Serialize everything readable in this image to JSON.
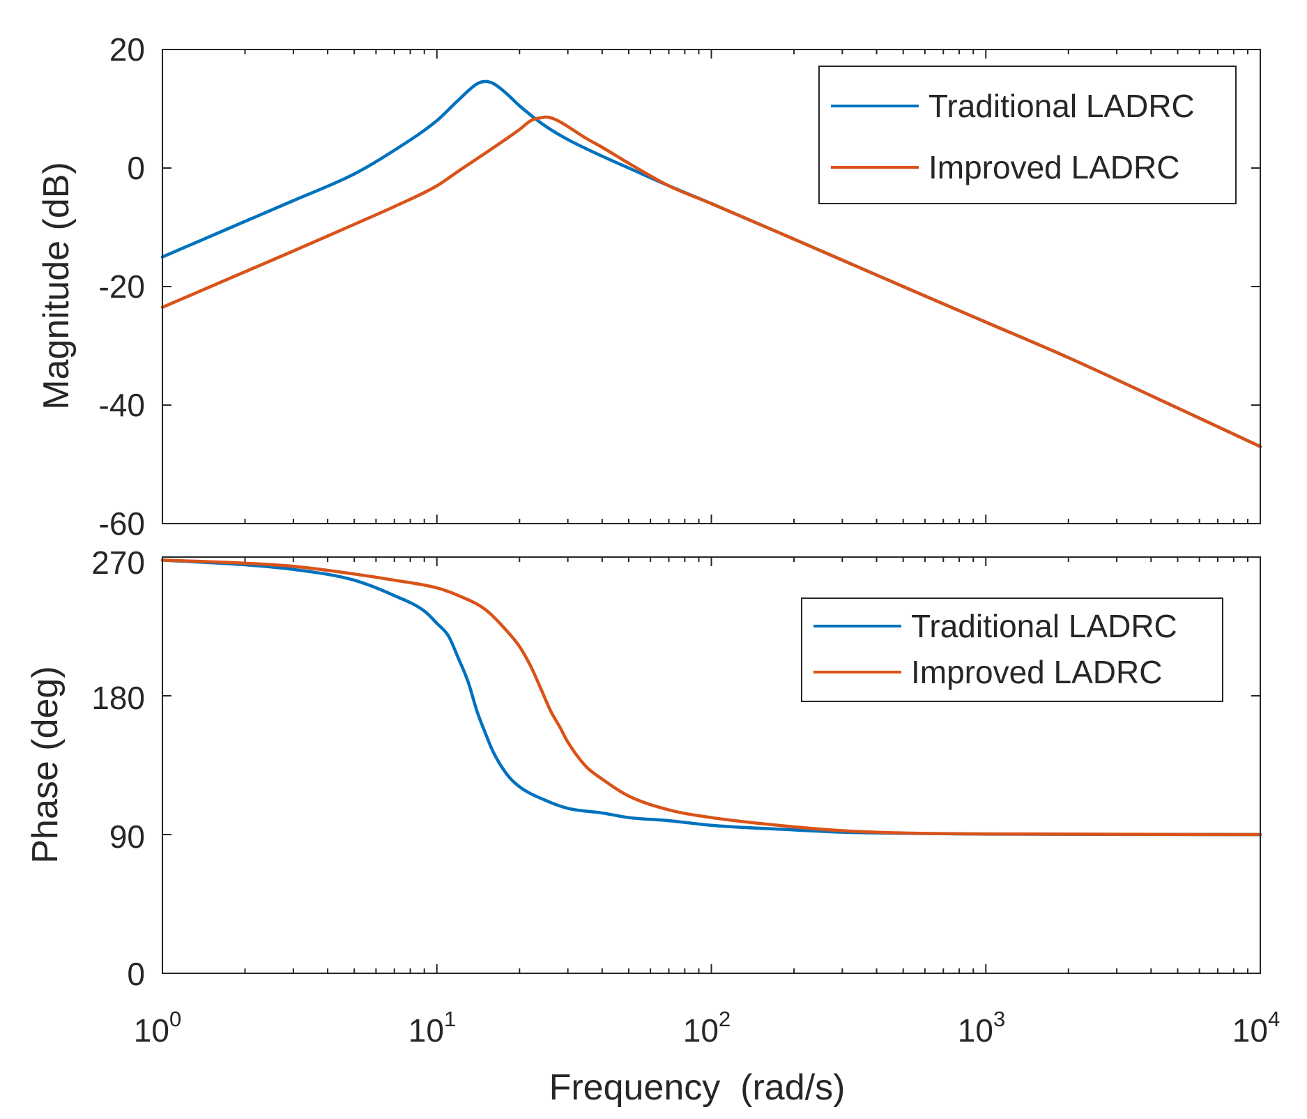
{
  "chart_data": [
    {
      "type": "line",
      "panel": "magnitude",
      "xscale": "log",
      "xlim": [
        1,
        10000
      ],
      "ylim": [
        -60,
        20
      ],
      "yticks": [
        "20",
        "0",
        "-20",
        "-40",
        "-60"
      ],
      "ylabel": "Magnitude (dB)",
      "xlabel": "",
      "legend": {
        "position": "top-right",
        "entries": [
          "Traditional LADRC",
          "Improved LADRC"
        ]
      },
      "series": [
        {
          "name": "Traditional LADRC",
          "color": "#0072BD",
          "x": [
            1,
            2,
            3,
            5,
            7,
            10,
            12,
            14,
            15,
            16,
            18,
            20,
            25,
            30,
            40,
            50,
            70,
            100,
            200,
            500,
            1000,
            2000,
            5000,
            10000
          ],
          "y": [
            -15,
            -9,
            -5.5,
            -1,
            3,
            8,
            11.5,
            14.2,
            14.6,
            14.3,
            12.5,
            10.5,
            7,
            4.8,
            2,
            0,
            -3,
            -6,
            -12,
            -20,
            -26,
            -32,
            -40.5,
            -47
          ]
        },
        {
          "name": "Improved LADRC",
          "color": "#D95319",
          "x": [
            1,
            2,
            3,
            5,
            7,
            10,
            12,
            15,
            18,
            20,
            22,
            24,
            25,
            27,
            30,
            35,
            40,
            50,
            70,
            100,
            200,
            500,
            1000,
            2000,
            5000,
            10000
          ],
          "y": [
            -23.5,
            -17.5,
            -14,
            -9.5,
            -6.5,
            -3,
            -0.5,
            2.5,
            5,
            6.5,
            8,
            8.5,
            8.6,
            8.2,
            7,
            5,
            3.5,
            0.8,
            -3,
            -6,
            -12,
            -20,
            -26,
            -32,
            -40.5,
            -47
          ]
        }
      ]
    },
    {
      "type": "line",
      "panel": "phase",
      "xscale": "log",
      "xlim": [
        1,
        10000
      ],
      "ylim": [
        0,
        270
      ],
      "yticks": [
        "270",
        "180",
        "90",
        "0"
      ],
      "ylabel": "Phase (deg)",
      "xlabel": "Frequency  (rad/s)",
      "xticks": [
        {
          "base": "10",
          "exp": "0"
        },
        {
          "base": "10",
          "exp": "1"
        },
        {
          "base": "10",
          "exp": "2"
        },
        {
          "base": "10",
          "exp": "3"
        },
        {
          "base": "10",
          "exp": "4"
        }
      ],
      "legend": {
        "position": "top-right",
        "entries": [
          "Traditional LADRC",
          "Improved LADRC"
        ]
      },
      "series": [
        {
          "name": "Traditional LADRC",
          "color": "#0072BD",
          "x": [
            1,
            2,
            3,
            5,
            7,
            9,
            10,
            11,
            12,
            13,
            14,
            15,
            16,
            18,
            20,
            25,
            30,
            40,
            50,
            70,
            100,
            200,
            300,
            500,
            1000,
            10000
          ],
          "y": [
            268,
            265,
            262,
            255,
            245,
            235,
            227,
            219,
            204,
            189,
            170,
            156,
            144,
            129,
            121,
            112,
            107,
            104,
            101,
            99,
            96,
            93,
            91.5,
            90.8,
            90.3,
            90
          ]
        },
        {
          "name": "Improved LADRC",
          "color": "#D95319",
          "x": [
            1,
            2,
            3,
            5,
            7,
            10,
            12,
            15,
            18,
            20,
            22,
            24,
            26,
            28,
            30,
            35,
            40,
            50,
            70,
            100,
            200,
            300,
            500,
            1000,
            10000
          ],
          "y": [
            268,
            266,
            264,
            259,
            255,
            250,
            245,
            236,
            222,
            212,
            199,
            184,
            170,
            160,
            150,
            134,
            126,
            115,
            106,
            101,
            95,
            92.5,
            91,
            90.4,
            90
          ]
        }
      ]
    }
  ]
}
